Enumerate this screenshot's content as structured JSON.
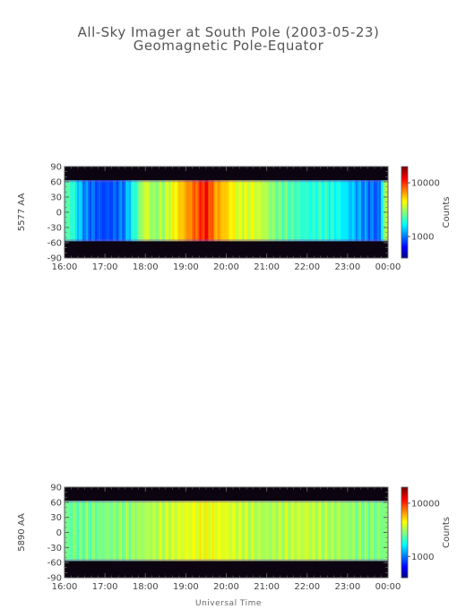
{
  "figure": {
    "title_line1": "All-Sky Imager at South Pole (2003-05-23)",
    "title_line2": "Geomagnetic Pole-Equator",
    "xlabel": "Universal Time"
  },
  "chart_data": [
    {
      "type": "heatmap",
      "ylabel": "5577 AA",
      "x_tick_labels": [
        "16:00",
        "17:00",
        "18:00",
        "19:00",
        "20:00",
        "21:00",
        "22:00",
        "23:00",
        "00:00"
      ],
      "x_range_hours": [
        16,
        24
      ],
      "y_ticks": [
        90,
        60,
        30,
        0,
        -30,
        -60,
        -90
      ],
      "ylim": [
        -90,
        90
      ],
      "data_lat_range": [
        -57,
        63
      ],
      "colorbar": {
        "label": "Counts",
        "tick_labels": [
          "10000",
          "1000"
        ],
        "tick_values": [
          10000,
          1000
        ],
        "scale": "log",
        "range": [
          400,
          20000
        ]
      },
      "band_profile": {
        "hours": [
          16.0,
          16.1,
          16.3,
          16.5,
          16.8,
          17.0,
          17.2,
          17.5,
          17.8,
          18.0,
          18.2,
          18.5,
          18.8,
          19.0,
          19.3,
          19.5,
          19.7,
          20.0,
          20.3,
          20.6,
          20.9,
          21.2,
          21.5,
          21.8,
          22.0,
          22.4,
          22.8,
          23.0,
          23.3,
          23.6,
          23.8,
          23.95
        ],
        "counts": [
          2000,
          2500,
          1600,
          1100,
          900,
          850,
          900,
          1100,
          2300,
          4000,
          3000,
          3500,
          5000,
          6500,
          9000,
          12000,
          7000,
          5500,
          4000,
          4200,
          3600,
          2800,
          2500,
          2200,
          2000,
          2100,
          1800,
          1500,
          1200,
          1000,
          950,
          3500
        ]
      }
    },
    {
      "type": "heatmap",
      "ylabel": "5890 AA",
      "x_tick_labels": [
        "16:00",
        "17:00",
        "18:00",
        "19:00",
        "20:00",
        "21:00",
        "22:00",
        "23:00",
        "00:00"
      ],
      "x_range_hours": [
        16,
        24
      ],
      "y_ticks": [
        90,
        60,
        30,
        0,
        -30,
        -60,
        -90
      ],
      "ylim": [
        -90,
        90
      ],
      "data_lat_range": [
        -57,
        63
      ],
      "colorbar": {
        "label": "Counts",
        "tick_labels": [
          "10000",
          "1000"
        ],
        "tick_values": [
          10000,
          1000
        ],
        "scale": "log",
        "range": [
          400,
          20000
        ]
      },
      "band_profile": {
        "hours": [
          16.0,
          16.5,
          17.0,
          17.5,
          18.0,
          18.5,
          19.0,
          19.5,
          20.0,
          20.5,
          21.0,
          21.5,
          22.0,
          22.5,
          23.0,
          23.5,
          23.95
        ],
        "counts": [
          2600,
          2700,
          2800,
          3000,
          3300,
          3700,
          4100,
          4500,
          4100,
          3700,
          3300,
          3600,
          3700,
          3400,
          3100,
          2900,
          2800
        ]
      }
    }
  ]
}
